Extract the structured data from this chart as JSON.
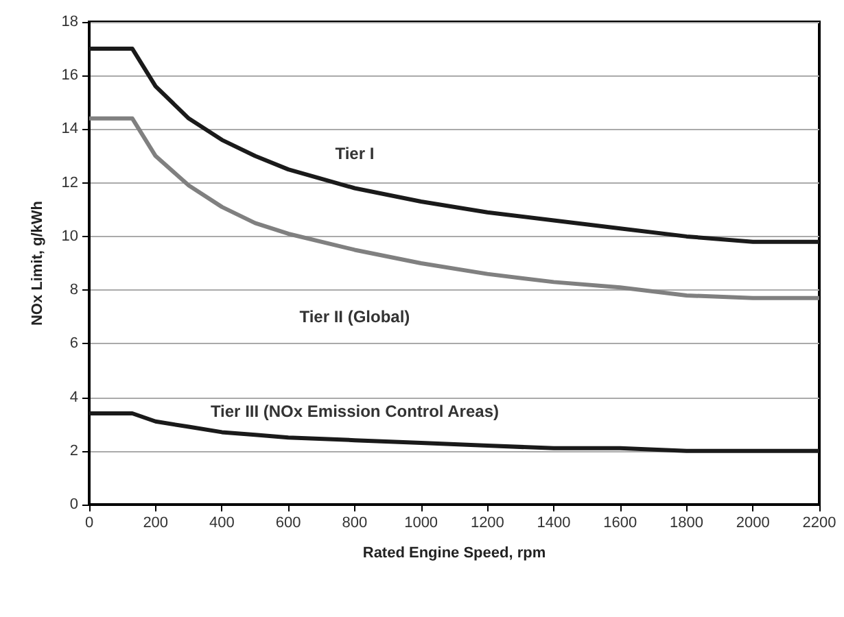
{
  "chart_data": {
    "type": "line",
    "xlabel": "Rated Engine Speed, rpm",
    "ylabel": "NOx Limit, g/kWh",
    "x": [
      0,
      130,
      200,
      300,
      400,
      500,
      600,
      800,
      1000,
      1200,
      1400,
      1600,
      1800,
      2000,
      2200
    ],
    "series": [
      {
        "name": "Tier I",
        "color": "#1a1a1a",
        "values": [
          17.0,
          17.0,
          15.6,
          14.4,
          13.6,
          13.0,
          12.5,
          11.8,
          11.3,
          10.9,
          10.6,
          10.3,
          10.0,
          9.8,
          9.8
        ]
      },
      {
        "name": "Tier II (Global)",
        "color": "#808080",
        "values": [
          14.4,
          14.4,
          13.0,
          11.9,
          11.1,
          10.5,
          10.1,
          9.5,
          9.0,
          8.6,
          8.3,
          8.1,
          7.8,
          7.7,
          7.7
        ]
      },
      {
        "name": "Tier III (NOx Emission Control Areas)",
        "color": "#1a1a1a",
        "values": [
          3.4,
          3.4,
          3.1,
          2.9,
          2.7,
          2.6,
          2.5,
          2.4,
          2.3,
          2.2,
          2.1,
          2.1,
          2.0,
          2.0,
          2.0
        ]
      }
    ],
    "xlim": [
      0,
      2200
    ],
    "xticks": [
      0,
      200,
      400,
      600,
      800,
      1000,
      1200,
      1400,
      1600,
      1800,
      2000,
      2200
    ],
    "ylim": [
      0,
      18
    ],
    "yticks": [
      0,
      2,
      4,
      6,
      8,
      10,
      12,
      14,
      16,
      18
    ],
    "grid": "y",
    "legend": false,
    "marker": "none",
    "line_style": "solid"
  }
}
